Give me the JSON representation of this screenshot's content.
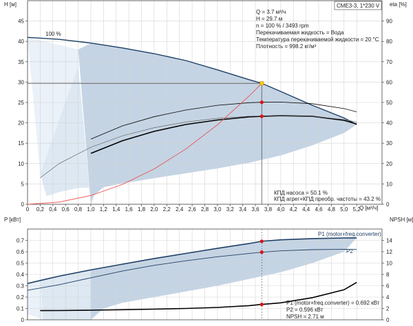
{
  "title_box": "CME3-3, 1*230 V",
  "colors": {
    "region": "#c4d4e4",
    "region_light": "#dde8f2",
    "region_lightest": "#eaf1f8",
    "curve_dark": "#1e3f66",
    "curve_black": "#000000",
    "curve_system": "#ee4444",
    "point_red": "#dd1111",
    "point_op": "#ffcc00",
    "guide": "#555555"
  },
  "info_top": [
    "Q = 3.7 м³/ч",
    "H = 29.7 м",
    "n = 100 % / 3493 rpm",
    "Перекачиваемая жидкость = Вода",
    "Температура перекачиваемой жидкости = 20 °C",
    "Плотность = 998.2 кг/м³"
  ],
  "info_eff": [
    "КПД насоса = 50.1 %",
    "КПД агрег+КПД преобр. частоты = 43.2 %"
  ],
  "info_bottom": [
    "P1 (motor+freq.converter) = 0.692 кВт",
    "P2 = 0.596 кВт",
    "NPSH = 2.71 м"
  ],
  "chart_data": [
    {
      "type": "line",
      "id": "head-efficiency",
      "xlabel": "Q [м³/ч]",
      "ylabel": "H [м]",
      "y2label": "eta [%]",
      "xlim": [
        0,
        5.6
      ],
      "ylim": [
        0,
        50
      ],
      "y2lim": [
        0,
        100
      ],
      "x_ticks": [
        0,
        0.2,
        0.4,
        0.6,
        0.8,
        1.0,
        1.2,
        1.4,
        1.6,
        1.8,
        2.0,
        2.2,
        2.4,
        2.6,
        2.8,
        3.0,
        3.2,
        3.4,
        3.6,
        3.8,
        4.0,
        4.2,
        4.4,
        4.6,
        4.8,
        5.0,
        5.2
      ],
      "x_tick_labels": [
        "0",
        "0,2",
        "0,4",
        "0,6",
        "0,8",
        "1,0",
        "1,2",
        "1,4",
        "1,6",
        "1,8",
        "2,0",
        "2,2",
        "2,4",
        "2,6",
        "2,8",
        "3,0",
        "3,2",
        "3,4",
        "3,6",
        "3,8",
        "4,0",
        "4,2",
        "4,4",
        "4,6",
        "4,8",
        "5,0",
        "5,2"
      ],
      "y_ticks": [
        0,
        5,
        10,
        15,
        20,
        25,
        30,
        35,
        40,
        45
      ],
      "y2_ticks": [
        0,
        10,
        20,
        30,
        40,
        50,
        60,
        70,
        80,
        90
      ],
      "grid": true,
      "curve_label": "100 %",
      "series": [
        {
          "name": "H",
          "axis": "left",
          "x": [
            0,
            0.5,
            1.0,
            1.5,
            2.0,
            2.5,
            3.0,
            3.5,
            3.7,
            4.0,
            4.5,
            5.0,
            5.2
          ],
          "y": [
            41.0,
            40.5,
            39.6,
            38.4,
            37.0,
            35.3,
            33.0,
            30.6,
            29.7,
            27.7,
            24.3,
            21.2,
            19.6
          ]
        },
        {
          "name": "eta pump",
          "axis": "right",
          "x": [
            1.0,
            1.5,
            2.0,
            2.5,
            3.0,
            3.5,
            3.7,
            4.0,
            4.5,
            5.0,
            5.2
          ],
          "y": [
            32.0,
            38.5,
            43.0,
            46.3,
            48.6,
            49.9,
            50.1,
            50.2,
            49.4,
            47.0,
            45.4
          ]
        },
        {
          "name": "eta total",
          "axis": "right",
          "x": [
            1.0,
            1.5,
            2.0,
            2.5,
            3.0,
            3.5,
            3.7,
            4.0,
            4.5,
            5.0,
            5.2
          ],
          "y": [
            25.0,
            31.2,
            35.8,
            39.2,
            41.4,
            42.9,
            43.2,
            43.5,
            43.2,
            41.2,
            39.4
          ]
        },
        {
          "name": "eta thin",
          "axis": "right",
          "x": [
            0.2,
            0.5,
            1.0,
            1.5,
            2.0,
            2.5,
            3.0,
            3.5,
            4.0,
            4.5,
            5.0,
            5.2
          ],
          "y": [
            13.0,
            20.0,
            28.0,
            33.6,
            37.6,
            40.4,
            42.2,
            43.2,
            43.6,
            43.2,
            41.6,
            40.4
          ]
        },
        {
          "name": "system",
          "axis": "left",
          "x": [
            0,
            0.5,
            1.0,
            1.5,
            2.0,
            2.5,
            3.0,
            3.5,
            3.7
          ],
          "y": [
            0,
            0.54,
            2.17,
            4.88,
            8.68,
            13.56,
            19.53,
            26.58,
            29.7
          ]
        }
      ],
      "region_outer": {
        "x": [
          0.8,
          1.0,
          1.5,
          2.0,
          2.5,
          3.0,
          3.5,
          4.0,
          4.5,
          5.0,
          5.2,
          5.0,
          4.5,
          4.0,
          3.5,
          3.0,
          2.5,
          2.0,
          1.5,
          1.2,
          1.05,
          1.0
        ],
        "y": [
          38.0,
          39.6,
          38.4,
          37.0,
          35.3,
          33.0,
          30.6,
          27.7,
          24.3,
          21.2,
          19.6,
          17.5,
          14.5,
          12.0,
          10.2,
          8.8,
          7.6,
          6.4,
          5.1,
          4.2,
          2.2,
          0
        ]
      },
      "region_light": {
        "x": [
          0.2,
          0.8,
          1.0,
          1.05,
          1.2,
          0.8,
          0.5,
          0.3
        ],
        "y": [
          7.5,
          34.0,
          0,
          2.2,
          4.2,
          4.0,
          3.0,
          2.0
        ]
      },
      "region_lightest": {
        "x": [
          0,
          0.8,
          0.8,
          0.2
        ],
        "y": [
          41.0,
          38.0,
          34.0,
          7.5
        ]
      },
      "operating_point": {
        "x": 3.7,
        "y": 29.7
      },
      "marks": [
        {
          "axis": "right",
          "x": 3.7,
          "y": 50.1
        },
        {
          "axis": "right",
          "x": 3.7,
          "y": 43.2
        }
      ]
    },
    {
      "type": "line",
      "id": "power-npsh",
      "xlim": [
        0,
        5.6
      ],
      "ylabel": "P [кВт]",
      "y2label": "NPSH [м]",
      "ylim": [
        0,
        0.8
      ],
      "y2lim": [
        0,
        16
      ],
      "y_ticks": [
        0,
        0.1,
        0.2,
        0.3,
        0.4,
        0.5,
        0.6,
        0.7
      ],
      "y_tick_labels": [
        "0",
        "0.1",
        "0.2",
        "0.3",
        "0.4",
        "0.5",
        "0.6",
        "0.7"
      ],
      "y2_ticks": [
        0,
        2,
        4,
        6,
        8,
        10,
        12,
        14
      ],
      "grid": true,
      "series": [
        {
          "name": "P1 (motor+freq.converter)",
          "axis": "left",
          "x": [
            0,
            0.5,
            1.0,
            1.5,
            2.0,
            2.5,
            3.0,
            3.5,
            3.7,
            4.0,
            4.5,
            5.0,
            5.2
          ],
          "y": [
            0.32,
            0.385,
            0.44,
            0.49,
            0.54,
            0.585,
            0.63,
            0.672,
            0.692,
            0.705,
            0.716,
            0.721,
            0.722
          ]
        },
        {
          "name": "P2",
          "axis": "left",
          "x": [
            0,
            0.5,
            1.0,
            1.5,
            2.0,
            2.5,
            3.0,
            3.5,
            3.7,
            4.0,
            4.5,
            5.0,
            5.2
          ],
          "y": [
            0.26,
            0.31,
            0.37,
            0.43,
            0.48,
            0.52,
            0.556,
            0.584,
            0.596,
            0.608,
            0.618,
            0.622,
            0.62
          ]
        },
        {
          "name": "NPSH",
          "axis": "right",
          "x": [
            0.2,
            0.5,
            1.0,
            1.5,
            2.0,
            2.5,
            3.0,
            3.5,
            3.7,
            4.0,
            4.5,
            5.0,
            5.2
          ],
          "y": [
            1.62,
            1.64,
            1.7,
            1.78,
            1.88,
            2.0,
            2.18,
            2.5,
            2.71,
            3.0,
            3.9,
            5.3,
            6.6
          ]
        }
      ],
      "region_outer": {
        "x": [
          1.0,
          1.5,
          2.0,
          2.5,
          3.0,
          3.5,
          4.0,
          4.5,
          5.0,
          5.2,
          5.0,
          4.5,
          4.0,
          3.5,
          3.0,
          2.5,
          2.0,
          1.5,
          1.2,
          1.0
        ],
        "y": [
          0.44,
          0.49,
          0.54,
          0.585,
          0.63,
          0.672,
          0.705,
          0.716,
          0.721,
          0.722,
          0.6,
          0.5,
          0.42,
          0.36,
          0.3,
          0.25,
          0.2,
          0.15,
          0.1,
          0.0
        ]
      },
      "region_light": {
        "x": [
          0.2,
          1.0,
          1.0,
          0.25
        ],
        "y": [
          0.36,
          0.44,
          0.0,
          0.0
        ]
      },
      "region_lightest": {
        "x": [
          0,
          0.2,
          0.25,
          0
        ],
        "y": [
          0.32,
          0.36,
          0.0,
          0.05
        ]
      },
      "operating_point": {
        "x": 3.7
      },
      "marks": [
        {
          "axis": "left",
          "x": 3.7,
          "y": 0.692
        },
        {
          "axis": "left",
          "x": 3.7,
          "y": 0.596
        },
        {
          "axis": "right",
          "x": 3.7,
          "y": 2.71
        }
      ],
      "line_labels": [
        "P1 (motor+freq.converter)",
        "P2"
      ]
    }
  ]
}
